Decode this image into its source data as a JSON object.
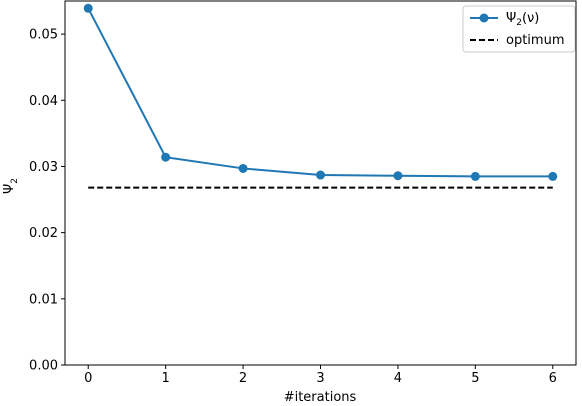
{
  "chart_data": {
    "type": "line",
    "xlabel": "#iterations",
    "ylabel_main": "Ψ",
    "ylabel_sub": "2",
    "xlim": [
      -0.3,
      6.3
    ],
    "ylim": [
      0.0,
      0.055
    ],
    "x_ticks": [
      0,
      1,
      2,
      3,
      4,
      5,
      6
    ],
    "x_tick_labels": [
      "0",
      "1",
      "2",
      "3",
      "4",
      "5",
      "6"
    ],
    "y_ticks": [
      0.0,
      0.01,
      0.02,
      0.03,
      0.04,
      0.05
    ],
    "y_tick_labels": [
      "0.00",
      "0.01",
      "0.02",
      "0.03",
      "0.04",
      "0.05"
    ],
    "grid": false,
    "legend_position": "top-right",
    "series": [
      {
        "name_main": "Ψ",
        "name_sub": "2",
        "name_rest": "(ν)",
        "style": "line-marker",
        "color": "#1f77b4",
        "x": [
          0,
          1,
          2,
          3,
          4,
          5,
          6
        ],
        "y": [
          0.0539,
          0.0314,
          0.0297,
          0.0287,
          0.0286,
          0.0285,
          0.0285
        ]
      },
      {
        "name": "optimum",
        "style": "dashed",
        "color": "#000000",
        "x": [
          0,
          6
        ],
        "y": [
          0.0268,
          0.0268
        ]
      }
    ]
  }
}
